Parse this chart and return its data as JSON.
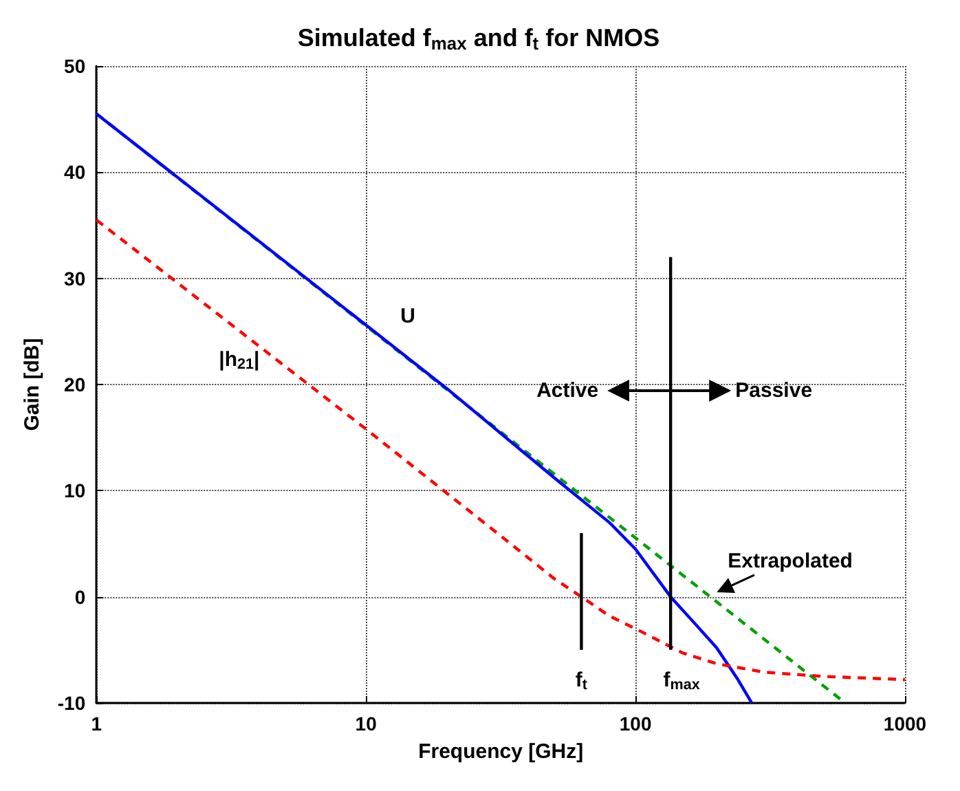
{
  "chart_data": {
    "type": "line",
    "title": "Simulated f$_{max}$ and f$_{t}$ for NMOS",
    "xlabel": "Frequency [GHz]",
    "ylabel": "Gain [dB]",
    "log": "x",
    "xlim": [
      1,
      1000
    ],
    "xticks": [
      1,
      10,
      100,
      1000
    ],
    "ylim": [
      -10,
      50
    ],
    "yticks": [
      -10,
      0,
      10,
      20,
      30,
      40,
      50
    ],
    "grid": true,
    "marker": "none",
    "series": [
      {
        "name": "Extrapolated",
        "x": [
          1,
          600
        ],
        "values": [
          45.5,
          -10
        ],
        "color": "#00a000",
        "line_style": "dashed"
      },
      {
        "name": "U",
        "x": [
          1,
          10,
          20,
          50,
          80,
          100,
          135,
          170,
          200,
          240,
          270
        ],
        "values": [
          45.5,
          25.6,
          19.6,
          11.2,
          7,
          4.5,
          0,
          -2.8,
          -4.8,
          -7.8,
          -10
        ],
        "color": "#0000ff",
        "line_style": "solid"
      },
      {
        "name": "|h$_{21}$|",
        "x": [
          1,
          10,
          30,
          50,
          63,
          80,
          100,
          150,
          200,
          300,
          500,
          1000
        ],
        "values": [
          35.5,
          15.8,
          6.2,
          1.7,
          0,
          -1.8,
          -3,
          -5.3,
          -6.3,
          -7.1,
          -7.5,
          -7.8
        ],
        "color": "#ff0000",
        "line_style": "dashed"
      },
      {
        "name": "f$_{t}$",
        "x": [
          63,
          63
        ],
        "values": [
          -5,
          6
        ],
        "color": "#000000",
        "line_style": "solid"
      },
      {
        "name": "f$_{max}$",
        "x": [
          135,
          135
        ],
        "values": [
          -5,
          32
        ],
        "color": "#000000",
        "line_style": "solid"
      }
    ],
    "annotations": [
      "Active",
      "Passive"
    ]
  }
}
